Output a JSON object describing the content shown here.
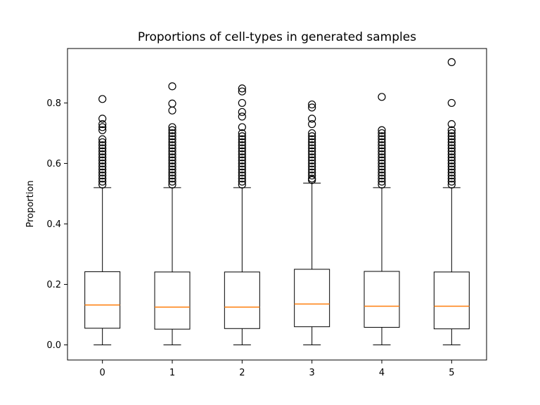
{
  "chart_data": {
    "type": "boxplot",
    "title": "Proportions of cell-types in generated samples",
    "xlabel": "",
    "ylabel": "Proportion",
    "ylim": [
      -0.05,
      0.98
    ],
    "yticks": [
      0.0,
      0.2,
      0.4,
      0.6,
      0.8
    ],
    "ytick_labels": [
      "0.0",
      "0.2",
      "0.4",
      "0.6",
      "0.8"
    ],
    "grid": false,
    "colors": {
      "box": "#000000",
      "median": "#ff7f0e",
      "flier": "#000000"
    },
    "categories": [
      "0",
      "1",
      "2",
      "3",
      "4",
      "5"
    ],
    "boxes": [
      {
        "category": "0",
        "whisker_low": 0.0,
        "q1": 0.055,
        "median": 0.132,
        "q3": 0.242,
        "whisker_high": 0.52,
        "fliers": [
          0.813,
          0.748,
          0.73,
          0.72,
          0.71,
          0.68,
          0.67,
          0.66,
          0.65,
          0.64,
          0.63,
          0.62,
          0.61,
          0.6,
          0.59,
          0.58,
          0.57,
          0.56,
          0.55,
          0.54,
          0.53
        ]
      },
      {
        "category": "1",
        "whisker_low": 0.0,
        "q1": 0.052,
        "median": 0.125,
        "q3": 0.241,
        "whisker_high": 0.52,
        "fliers": [
          0.855,
          0.798,
          0.775,
          0.72,
          0.71,
          0.7,
          0.69,
          0.68,
          0.67,
          0.66,
          0.65,
          0.64,
          0.63,
          0.62,
          0.61,
          0.6,
          0.59,
          0.58,
          0.57,
          0.56,
          0.55,
          0.54,
          0.53
        ]
      },
      {
        "category": "2",
        "whisker_low": 0.0,
        "q1": 0.054,
        "median": 0.125,
        "q3": 0.241,
        "whisker_high": 0.52,
        "fliers": [
          0.848,
          0.838,
          0.8,
          0.77,
          0.755,
          0.72,
          0.7,
          0.69,
          0.68,
          0.67,
          0.66,
          0.65,
          0.64,
          0.63,
          0.62,
          0.61,
          0.6,
          0.59,
          0.58,
          0.57,
          0.56,
          0.55,
          0.54,
          0.53
        ]
      },
      {
        "category": "3",
        "whisker_low": 0.0,
        "q1": 0.06,
        "median": 0.135,
        "q3": 0.25,
        "whisker_high": 0.535,
        "fliers": [
          0.795,
          0.785,
          0.748,
          0.73,
          0.7,
          0.69,
          0.68,
          0.67,
          0.66,
          0.65,
          0.64,
          0.63,
          0.62,
          0.61,
          0.6,
          0.59,
          0.58,
          0.57,
          0.56,
          0.55,
          0.545
        ]
      },
      {
        "category": "4",
        "whisker_low": 0.0,
        "q1": 0.058,
        "median": 0.128,
        "q3": 0.243,
        "whisker_high": 0.52,
        "fliers": [
          0.82,
          0.71,
          0.7,
          0.69,
          0.68,
          0.67,
          0.66,
          0.65,
          0.64,
          0.63,
          0.62,
          0.61,
          0.6,
          0.59,
          0.58,
          0.57,
          0.56,
          0.55,
          0.54,
          0.53
        ]
      },
      {
        "category": "5",
        "whisker_low": 0.0,
        "q1": 0.053,
        "median": 0.128,
        "q3": 0.241,
        "whisker_high": 0.52,
        "fliers": [
          0.935,
          0.8,
          0.73,
          0.71,
          0.7,
          0.69,
          0.68,
          0.67,
          0.66,
          0.65,
          0.64,
          0.63,
          0.62,
          0.61,
          0.6,
          0.59,
          0.58,
          0.57,
          0.56,
          0.55,
          0.54,
          0.53
        ]
      }
    ]
  }
}
